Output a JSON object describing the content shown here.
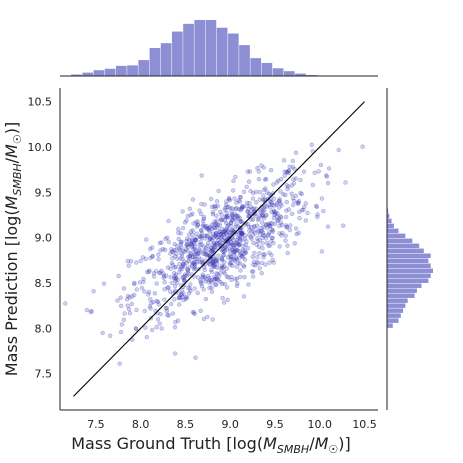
{
  "chart_data": {
    "type": "scatter",
    "title": "",
    "xlabel": {
      "prefix": "Mass Ground Truth [log(",
      "M": "M",
      "sub": "SMBH",
      "slash": "/",
      "M2": "M",
      "sun": "☉",
      "suffix": ")]"
    },
    "ylabel": {
      "prefix": "Mass Prediction [log(",
      "M": "M",
      "sub": "SMBH",
      "slash": "/",
      "M2": "M",
      "sun": "☉",
      "suffix": ")]"
    },
    "xlim": [
      7.1,
      10.65
    ],
    "ylim": [
      7.1,
      10.65
    ],
    "xticks": [
      "7.5",
      "8.0",
      "8.5",
      "9.0",
      "9.5",
      "10.0",
      "10.5"
    ],
    "yticks": [
      "7.5",
      "8.0",
      "8.5",
      "9.0",
      "9.5",
      "10.0",
      "10.5"
    ],
    "identity_line": {
      "from": [
        7.25,
        7.25
      ],
      "to": [
        10.5,
        10.5
      ]
    },
    "grid": false,
    "n_points_approx": 1000,
    "point_color": "#2d2db4",
    "hist_color": "#8c8fd4",
    "marginal_x_hist": {
      "bin_edges_start": 7.1,
      "bin_width": 0.125,
      "counts": [
        1,
        3,
        7,
        12,
        15,
        21,
        22,
        33,
        58,
        68,
        92,
        108,
        116,
        116,
        100,
        88,
        64,
        37,
        27,
        16,
        10,
        5,
        2,
        1
      ]
    },
    "marginal_y_hist": {
      "bin_edges_start": 8.0,
      "bin_width": 0.055,
      "counts": [
        5,
        10,
        12,
        14,
        16,
        18,
        24,
        26,
        30,
        36,
        38,
        40,
        38,
        36,
        38,
        32,
        28,
        22,
        16,
        10,
        6,
        4,
        2,
        1
      ]
    }
  }
}
